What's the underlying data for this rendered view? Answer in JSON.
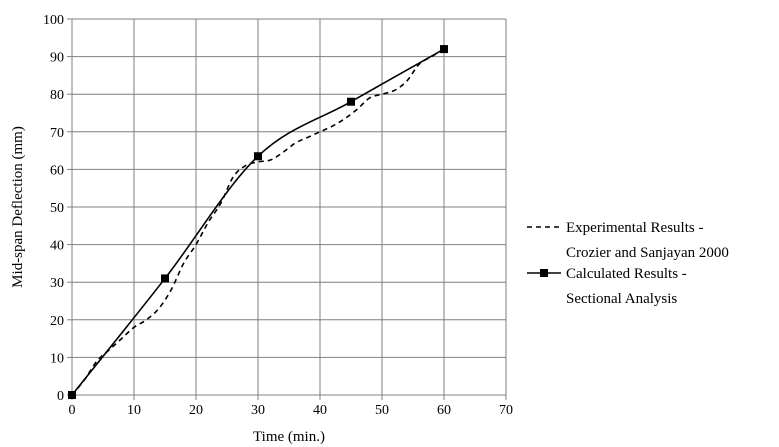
{
  "chart_data": {
    "type": "line",
    "xlabel": "Time (min.)",
    "ylabel": "Mid-span Deflection (mm)",
    "xlim": [
      0,
      70
    ],
    "ylim": [
      0,
      100
    ],
    "x_ticks": [
      0,
      10,
      20,
      30,
      40,
      50,
      60,
      70
    ],
    "y_ticks": [
      0,
      10,
      20,
      30,
      40,
      50,
      60,
      70,
      80,
      90,
      100
    ],
    "grid": true,
    "legend_position": "right",
    "series": [
      {
        "name_lines": [
          "Experimental Results -",
          "Crozier and Sanjayan 2000"
        ],
        "line_style": "dashed",
        "color": "#000000",
        "marker": "none",
        "x": [
          0,
          2,
          4,
          6,
          8,
          10,
          12,
          14,
          16,
          18,
          20,
          22,
          24,
          26,
          28,
          30,
          32,
          34,
          36,
          38,
          40,
          42,
          44,
          46,
          48,
          50,
          52,
          54,
          56,
          58,
          60
        ],
        "y": [
          0,
          4,
          9,
          12,
          15,
          18,
          20,
          23,
          28,
          35,
          40,
          46,
          51,
          58,
          61,
          62,
          62.5,
          64.5,
          67,
          68.5,
          70,
          71.5,
          73.5,
          76,
          79,
          80,
          81,
          83.5,
          88,
          90,
          92
        ]
      },
      {
        "name_lines": [
          "Calculated Results -",
          "Sectional Analysis"
        ],
        "line_style": "solid",
        "color": "#000000",
        "marker": "square",
        "x": [
          0,
          15,
          30,
          45,
          60
        ],
        "y": [
          0,
          31,
          63.5,
          78,
          92
        ]
      }
    ]
  }
}
